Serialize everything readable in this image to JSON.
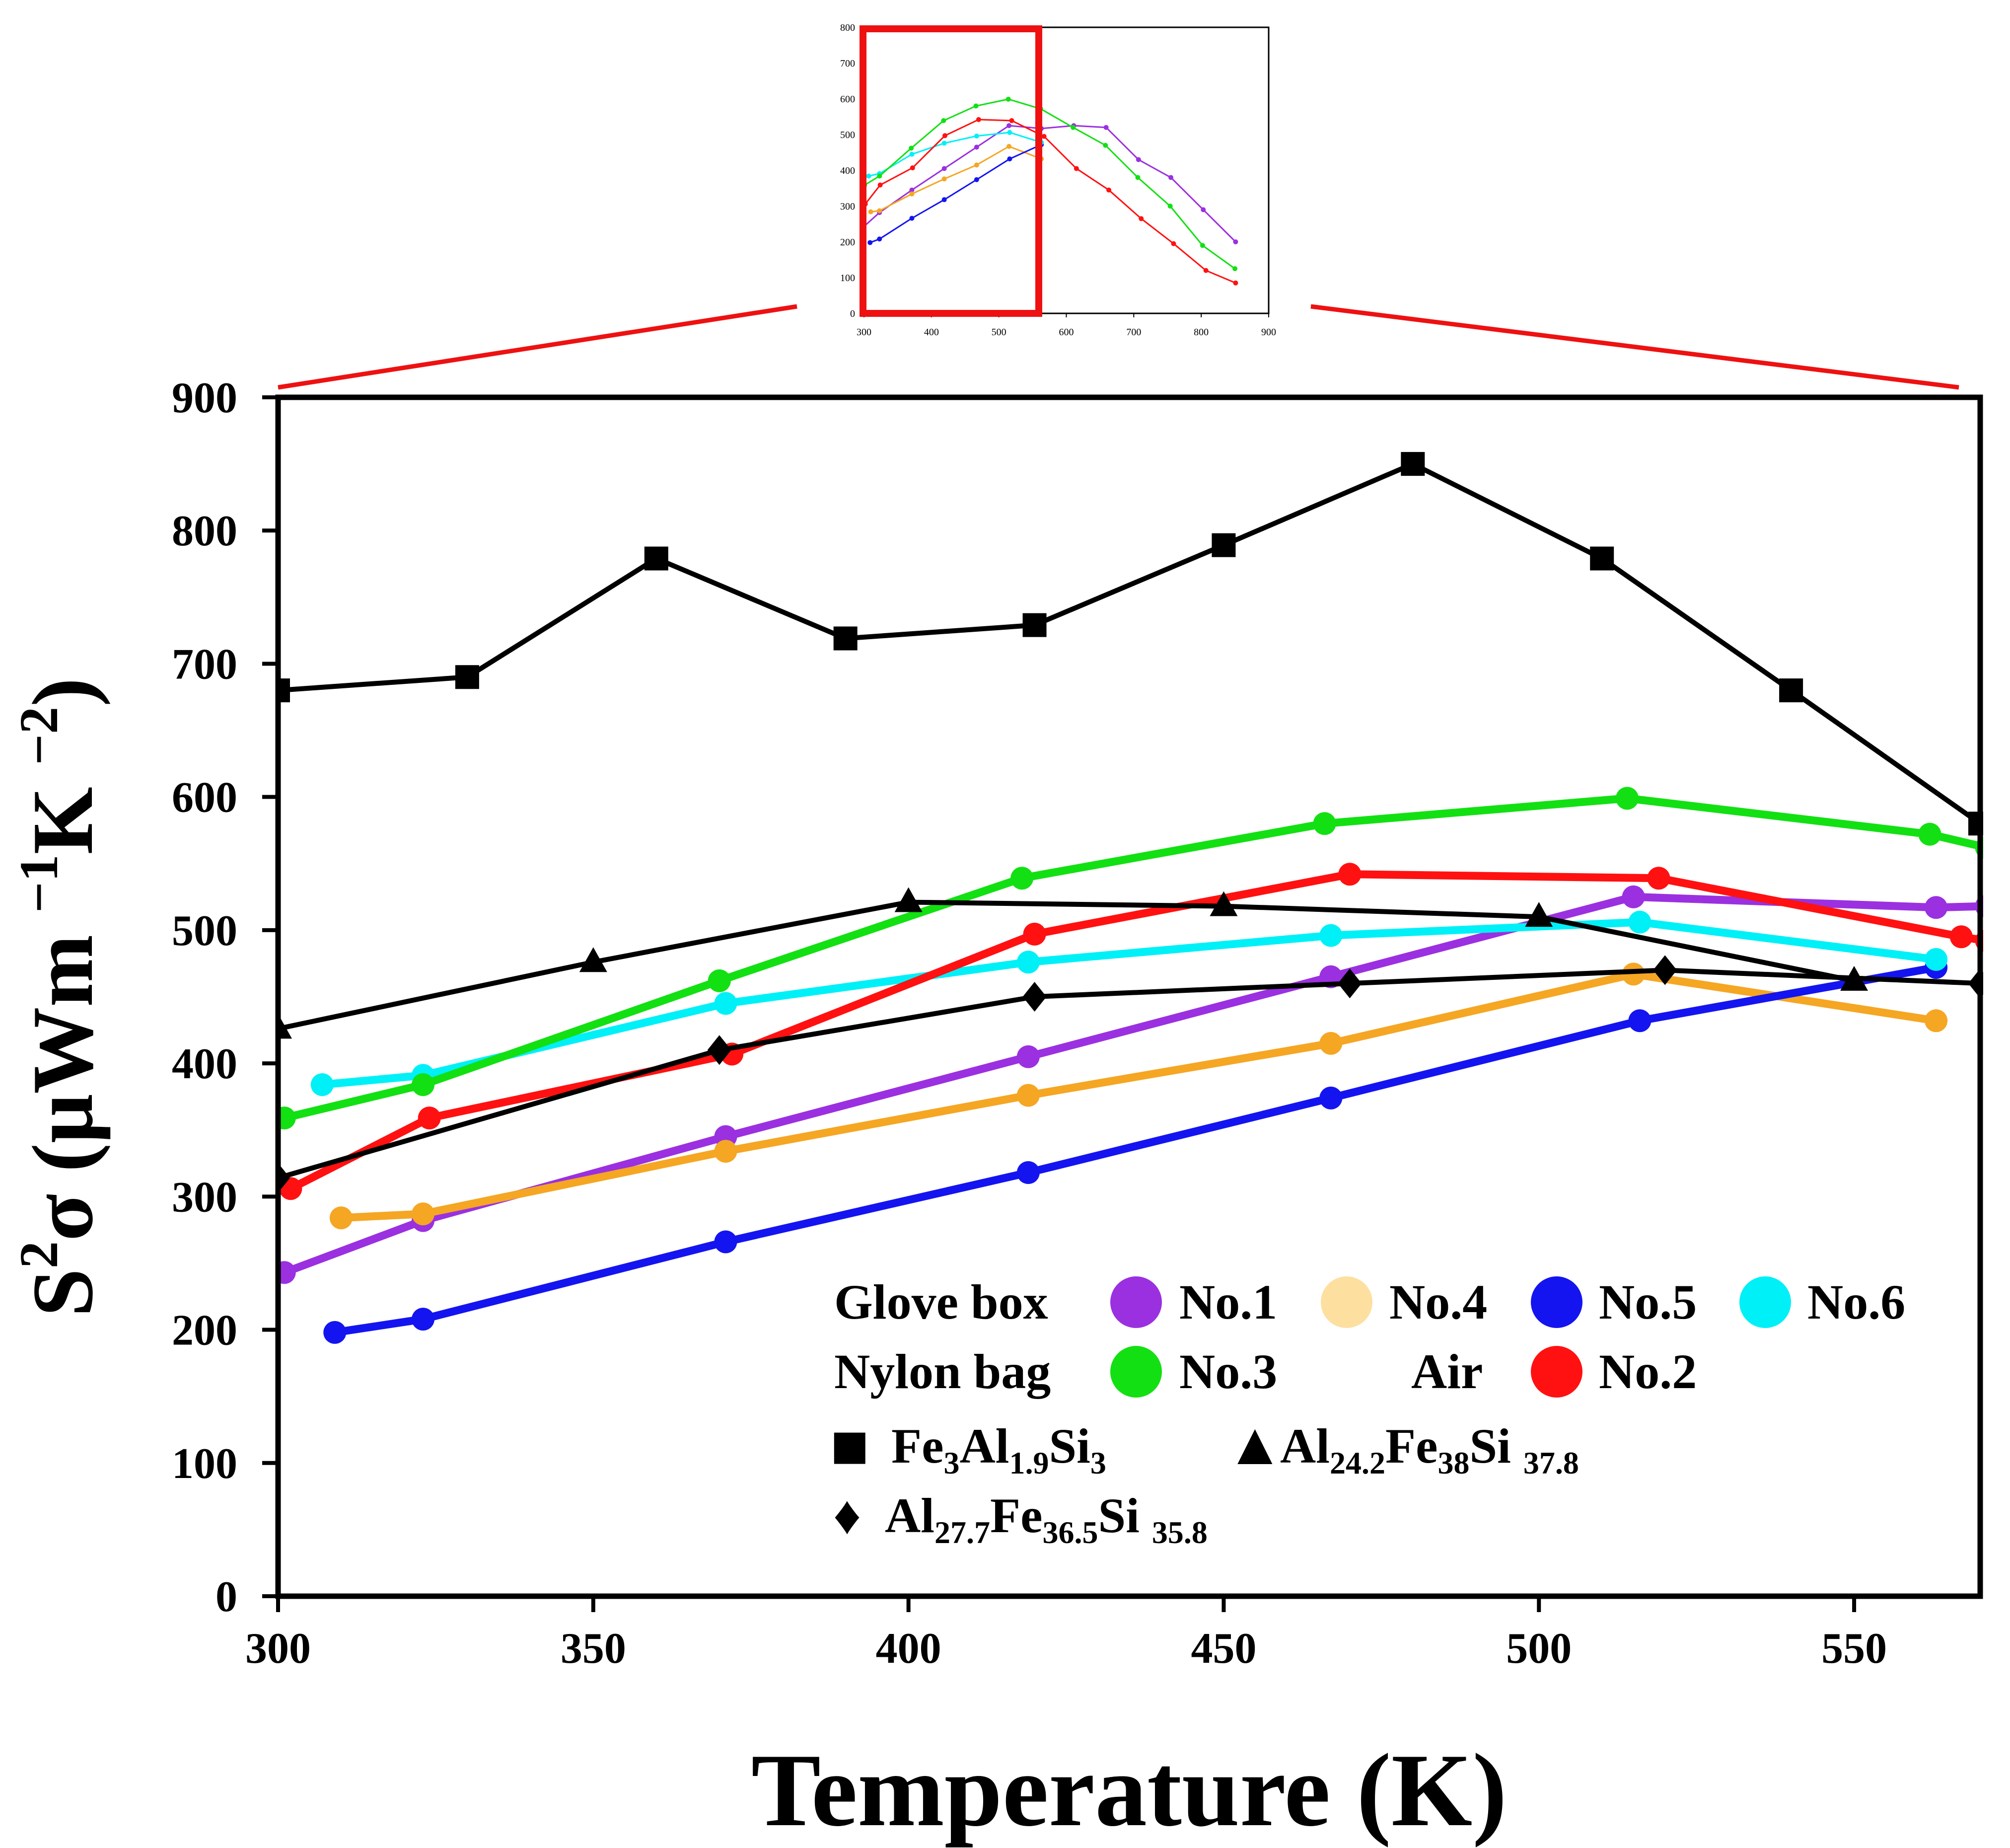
{
  "chart_data": [
    {
      "type": "line",
      "name": "main",
      "xlabel": "Temperature (K)",
      "ylabel_parts": [
        "S",
        "2",
        "σ (μWm ",
        "−1",
        "K ",
        "−2",
        ")"
      ],
      "xlim": [
        300,
        570
      ],
      "ylim": [
        0,
        900
      ],
      "xticks": [
        "300",
        "350",
        "400",
        "450",
        "500",
        "550"
      ],
      "yticks": [
        "0",
        "100",
        "200",
        "300",
        "400",
        "500",
        "600",
        "700",
        "800",
        "900"
      ],
      "grid": false,
      "series": [
        {
          "name": "No.1",
          "color": "#9b30e0",
          "style": "circle",
          "x": [
            301,
            323,
            371,
            419,
            467,
            515,
            563,
            571
          ],
          "y": [
            243,
            282,
            345,
            405,
            465,
            525,
            517,
            518
          ]
        },
        {
          "name": "No.4",
          "color": "#f5a623",
          "style": "circle",
          "x": [
            310,
            323,
            371,
            419,
            467,
            515,
            563
          ],
          "y": [
            284,
            287,
            334,
            376,
            415,
            467,
            432
          ]
        },
        {
          "name": "No.5",
          "color": "#1414f0",
          "style": "circle",
          "x": [
            309,
            323,
            371,
            419,
            467,
            516,
            563
          ],
          "y": [
            198,
            208,
            266,
            318,
            374,
            432,
            472
          ]
        },
        {
          "name": "No.6",
          "color": "#00f0f8",
          "style": "circle",
          "x": [
            307,
            323,
            371,
            419,
            467,
            516,
            563
          ],
          "y": [
            384,
            391,
            445,
            476,
            496,
            506,
            478
          ]
        },
        {
          "name": "No.3",
          "color": "#12e012",
          "style": "circle",
          "x": [
            301,
            323,
            370,
            418,
            466,
            514,
            562,
            571
          ],
          "y": [
            359,
            384,
            462,
            539,
            580,
            599,
            572,
            562
          ]
        },
        {
          "name": "No.2",
          "color": "#ff1111",
          "style": "circle",
          "x": [
            302,
            324,
            372,
            420,
            470,
            519,
            567,
            571
          ],
          "y": [
            306,
            359,
            407,
            497,
            542,
            539,
            495,
            492
          ]
        },
        {
          "name": "Fe3Al1.9Si3",
          "color": "#000000",
          "style": "square",
          "x": [
            300,
            330,
            360,
            390,
            420,
            450,
            480,
            510,
            540,
            570
          ],
          "y": [
            680,
            690,
            779,
            719,
            729,
            789,
            850,
            779,
            680,
            580
          ]
        },
        {
          "name": "Al24.2Fe38Si37.8",
          "color": "#000000",
          "style": "triangle",
          "x": [
            300,
            350,
            400,
            450,
            500,
            550
          ],
          "y": [
            426,
            476,
            521,
            518,
            510,
            462
          ]
        },
        {
          "name": "Al27.7Fe36.5Si35.8",
          "color": "#000000",
          "style": "diamond",
          "x": [
            300,
            370,
            420,
            470,
            520,
            570
          ],
          "y": [
            314,
            410,
            450,
            460,
            470,
            460
          ]
        }
      ],
      "legend": {
        "row1_label": "Glove box",
        "row1_items": [
          "No.1",
          "No.4",
          "No.5",
          "No.6"
        ],
        "row2_label": "Nylon bag",
        "row2_item": "No.3",
        "row2_label2": "Air",
        "row2_item2": "No.2",
        "fe3": [
          "Fe",
          "3",
          "Al",
          "1.9",
          "Si",
          "3"
        ],
        "al24": [
          "Al",
          "24.2",
          "Fe",
          "38",
          "Si ",
          "37.8"
        ],
        "al27": [
          "Al",
          "27.7",
          "Fe",
          "36.5",
          "Si ",
          "35.8"
        ],
        "square_glyph": "■",
        "triangle_glyph": "▲",
        "diamond_glyph": "♦"
      }
    },
    {
      "type": "line",
      "name": "inset",
      "xlim": [
        300,
        900
      ],
      "ylim": [
        0,
        800
      ],
      "xticks": [
        "300",
        "400",
        "500",
        "600",
        "700",
        "800",
        "900"
      ],
      "yticks": [
        "0",
        "100",
        "200",
        "300",
        "400",
        "500",
        "600",
        "700",
        "800"
      ],
      "zoom_box": {
        "x": [
          300,
          560
        ],
        "y": [
          0,
          800
        ]
      },
      "series": [
        {
          "name": "No.1",
          "color": "#9b30e0",
          "x": [
            300,
            323,
            371,
            419,
            467,
            515,
            563,
            611,
            659,
            707,
            755,
            803,
            851
          ],
          "y": [
            243,
            282,
            345,
            405,
            465,
            525,
            517,
            525,
            520,
            430,
            380,
            290,
            200
          ]
        },
        {
          "name": "No.4",
          "color": "#f5a623",
          "x": [
            310,
            323,
            371,
            419,
            467,
            515,
            563
          ],
          "y": [
            284,
            287,
            334,
            376,
            415,
            467,
            432
          ]
        },
        {
          "name": "No.5",
          "color": "#1414f0",
          "x": [
            309,
            323,
            371,
            419,
            467,
            516,
            563
          ],
          "y": [
            198,
            208,
            266,
            318,
            374,
            432,
            472
          ]
        },
        {
          "name": "No.6",
          "color": "#00f0f8",
          "x": [
            307,
            323,
            371,
            419,
            467,
            516,
            563
          ],
          "y": [
            384,
            391,
            445,
            476,
            496,
            506,
            478
          ]
        },
        {
          "name": "No.3",
          "color": "#12e012",
          "x": [
            301,
            323,
            370,
            418,
            466,
            514,
            562,
            610,
            658,
            706,
            754,
            802,
            850
          ],
          "y": [
            359,
            384,
            462,
            539,
            580,
            599,
            572,
            520,
            470,
            380,
            300,
            190,
            125
          ]
        },
        {
          "name": "No.2",
          "color": "#ff1111",
          "x": [
            302,
            324,
            372,
            420,
            470,
            519,
            567,
            615,
            663,
            711,
            759,
            807,
            851
          ],
          "y": [
            306,
            359,
            407,
            497,
            542,
            539,
            495,
            405,
            345,
            265,
            195,
            120,
            85
          ]
        }
      ]
    }
  ]
}
